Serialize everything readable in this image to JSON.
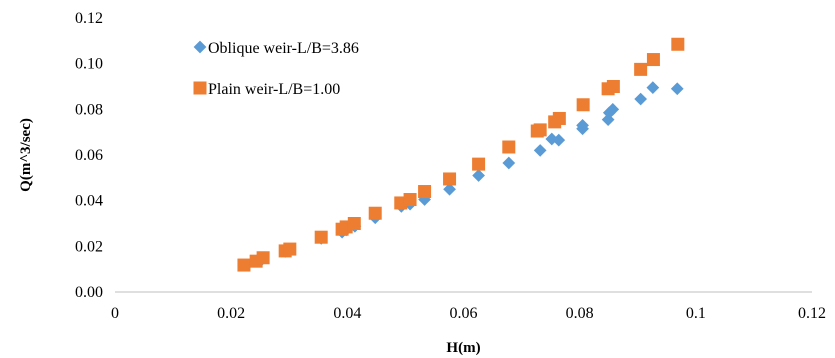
{
  "chart_data": {
    "type": "scatter",
    "xlabel": "H(m)",
    "ylabel": "Q(m^3/sec)",
    "xlim": [
      0,
      0.12
    ],
    "ylim": [
      0,
      0.12
    ],
    "x_ticks": [
      "0",
      "0.02",
      "0.04",
      "0.06",
      "0.08",
      "0.1",
      "0.12"
    ],
    "y_ticks": [
      "0.00",
      "0.02",
      "0.04",
      "0.06",
      "0.08",
      "0.10",
      "0.12"
    ],
    "grid": false,
    "legend_position": "top-left",
    "series": [
      {
        "name": "Oblique weir-L/B=3.86",
        "marker": "diamond",
        "color": "#5B9BD5",
        "points": [
          [
            0.0222,
            0.0118
          ],
          [
            0.0243,
            0.0135
          ],
          [
            0.0254,
            0.0145
          ],
          [
            0.0293,
            0.0178
          ],
          [
            0.0301,
            0.0185
          ],
          [
            0.0355,
            0.0235
          ],
          [
            0.0391,
            0.0262
          ],
          [
            0.0398,
            0.0272
          ],
          [
            0.0413,
            0.0288
          ],
          [
            0.0448,
            0.0325
          ],
          [
            0.0493,
            0.0375
          ],
          [
            0.0508,
            0.0385
          ],
          [
            0.0533,
            0.0405
          ],
          [
            0.0576,
            0.045
          ],
          [
            0.0626,
            0.051
          ],
          [
            0.0678,
            0.0565
          ],
          [
            0.0732,
            0.062
          ],
          [
            0.0752,
            0.067
          ],
          [
            0.0764,
            0.0665
          ],
          [
            0.0805,
            0.0715
          ],
          [
            0.0805,
            0.073
          ],
          [
            0.0849,
            0.0755
          ],
          [
            0.0851,
            0.0785
          ],
          [
            0.0857,
            0.08
          ],
          [
            0.0905,
            0.0845
          ],
          [
            0.0926,
            0.0895
          ],
          [
            0.0968,
            0.089
          ]
        ]
      },
      {
        "name": "Plain weir-L/B=1.00",
        "marker": "square",
        "color": "#ED7D31",
        "points": [
          [
            0.0222,
            0.0118
          ],
          [
            0.0243,
            0.0135
          ],
          [
            0.0255,
            0.015
          ],
          [
            0.0293,
            0.018
          ],
          [
            0.0301,
            0.0188
          ],
          [
            0.0355,
            0.024
          ],
          [
            0.0391,
            0.0275
          ],
          [
            0.0398,
            0.0285
          ],
          [
            0.0412,
            0.03
          ],
          [
            0.0448,
            0.0345
          ],
          [
            0.0492,
            0.039
          ],
          [
            0.0508,
            0.0405
          ],
          [
            0.0533,
            0.044
          ],
          [
            0.0576,
            0.0495
          ],
          [
            0.0626,
            0.056
          ],
          [
            0.0678,
            0.0635
          ],
          [
            0.0727,
            0.0705
          ],
          [
            0.0732,
            0.071
          ],
          [
            0.0757,
            0.0745
          ],
          [
            0.0765,
            0.076
          ],
          [
            0.0806,
            0.082
          ],
          [
            0.0849,
            0.089
          ],
          [
            0.0858,
            0.09
          ],
          [
            0.0905,
            0.0975
          ],
          [
            0.0927,
            0.1018
          ],
          [
            0.0969,
            0.1085
          ]
        ]
      }
    ]
  }
}
